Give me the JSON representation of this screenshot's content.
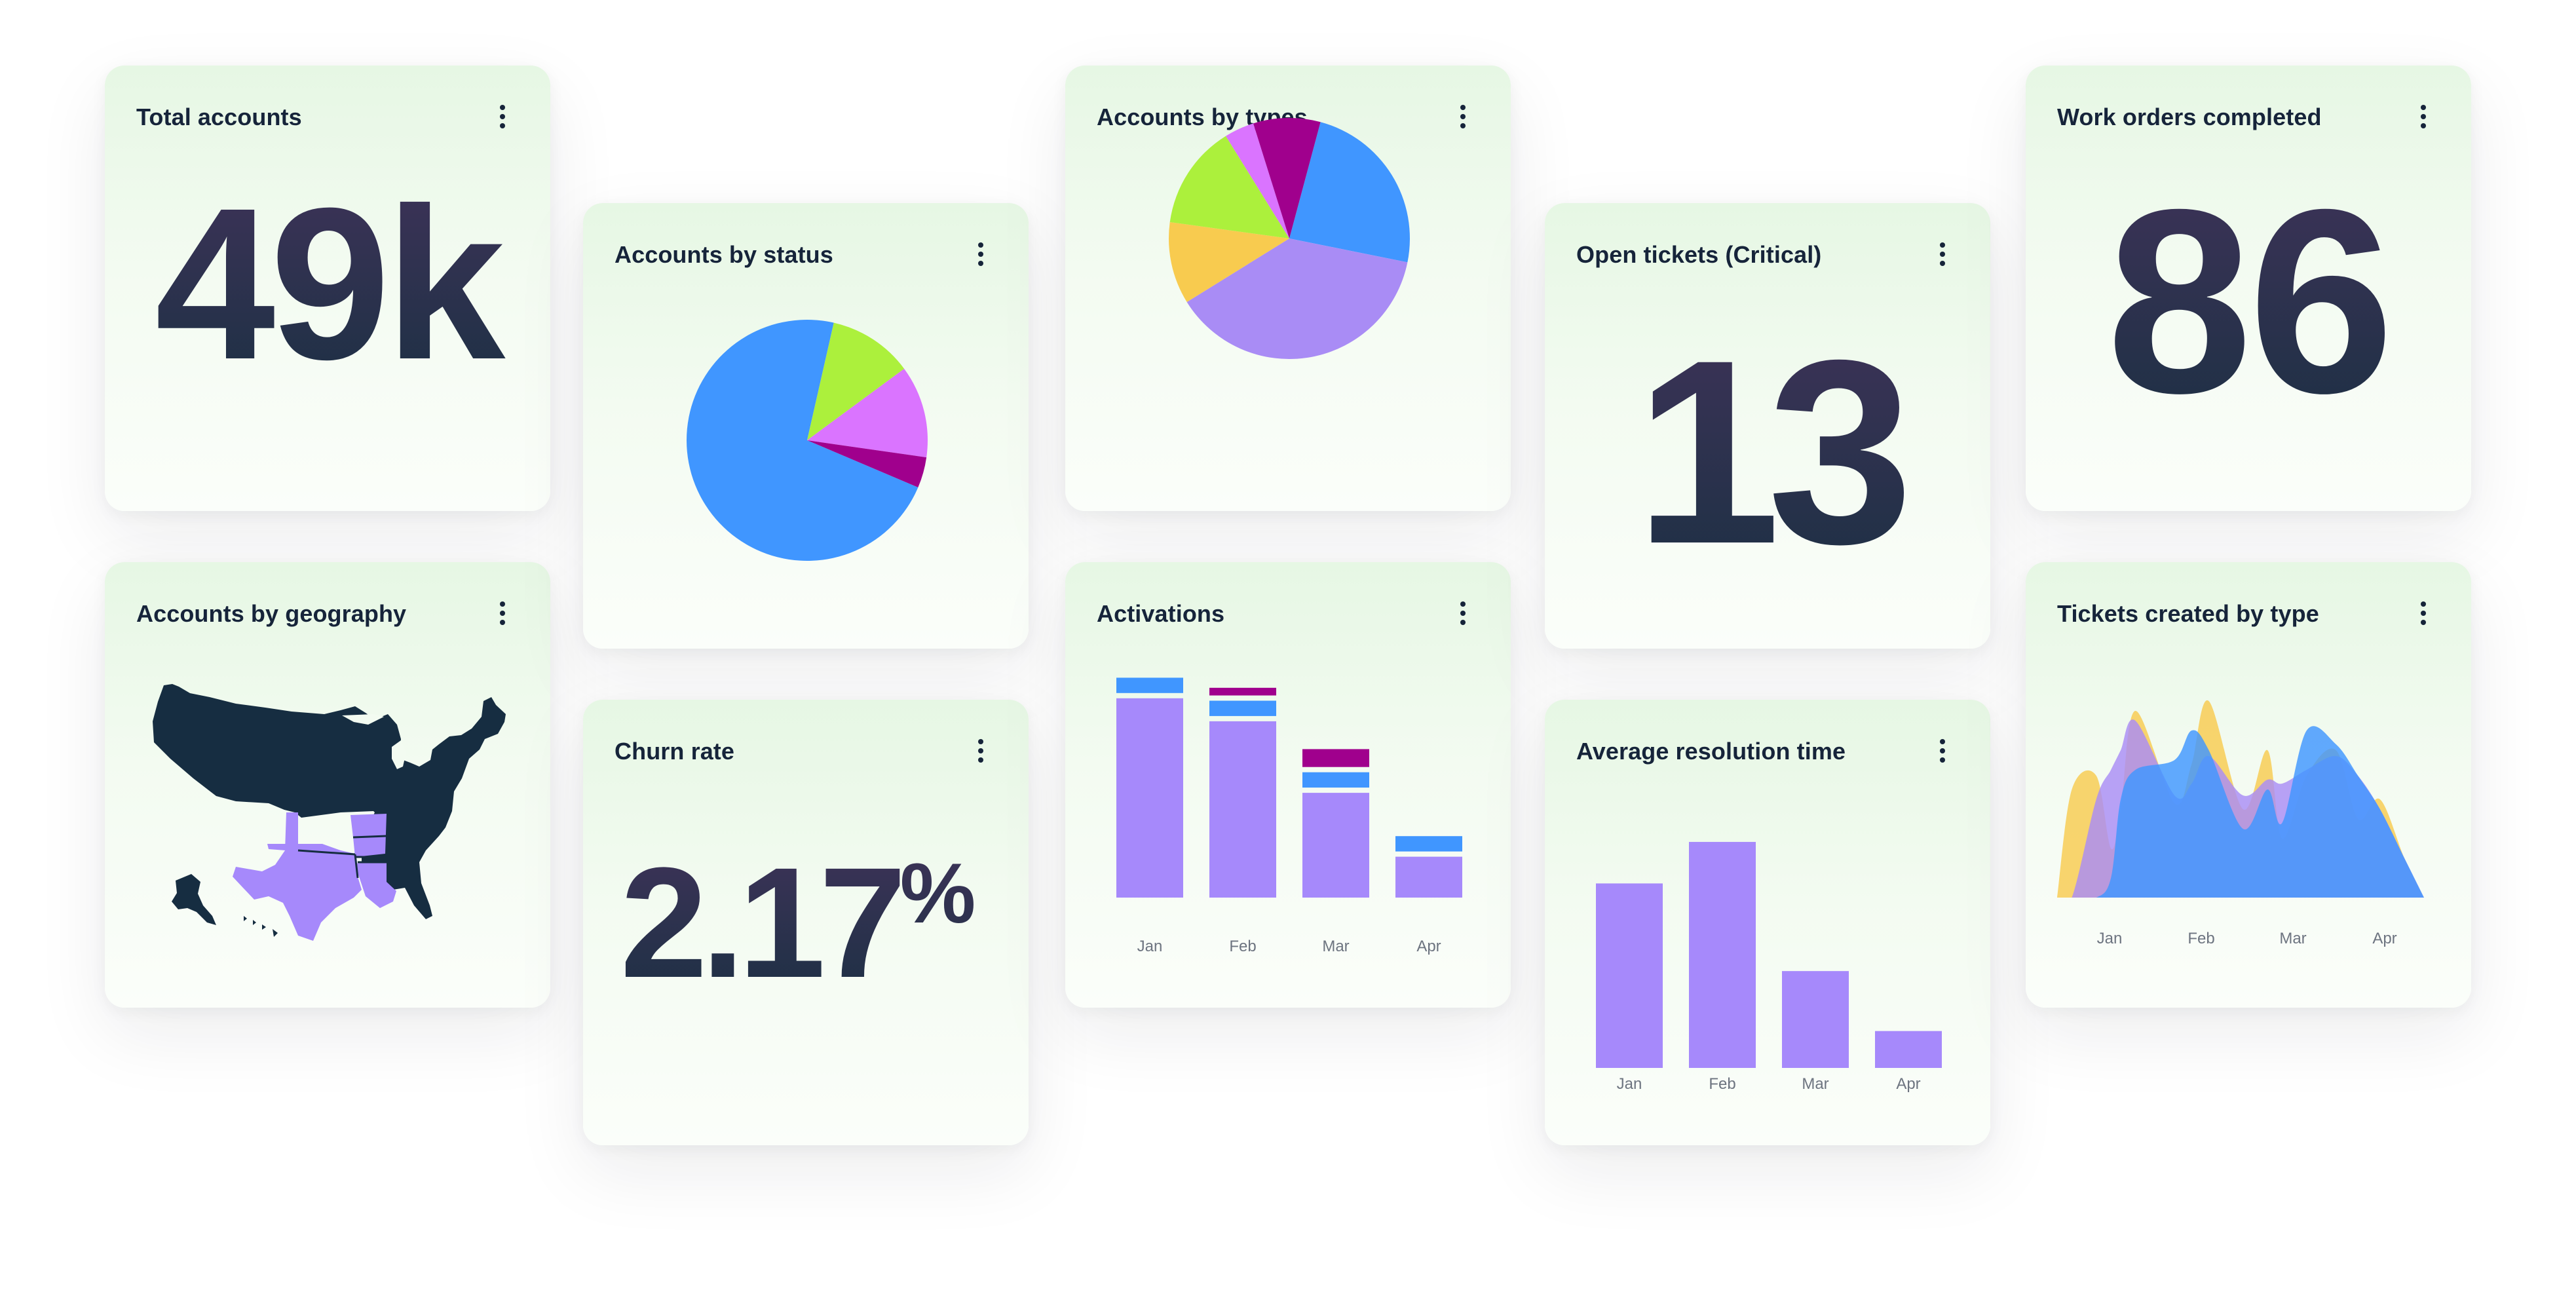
{
  "colors": {
    "purple": "#a689fb",
    "blue": "#4096ff",
    "magenta": "#a0008d",
    "lime": "#acf03c",
    "pink": "#da74ff",
    "yellow": "#f8cb4f",
    "lavender": "#a98cf5",
    "map_dark": "#162d41",
    "kpi_text": "#1d2b43"
  },
  "cards": {
    "total_accounts": {
      "title": "Total accounts",
      "value": "49k"
    },
    "accounts_by_geography": {
      "title": "Accounts by geography",
      "highlighted_states": [
        "Texas",
        "Oklahoma",
        "Arkansas",
        "Louisiana"
      ]
    },
    "accounts_by_status": {
      "title": "Accounts by status"
    },
    "churn_rate": {
      "title": "Churn rate",
      "value": "2.17",
      "unit": "%"
    },
    "accounts_by_types": {
      "title": "Accounts by types"
    },
    "activations": {
      "title": "Activations"
    },
    "open_tickets": {
      "title": "Open tickets (Critical)",
      "value": "13"
    },
    "average_resolution_time": {
      "title": "Average resolution time"
    },
    "work_orders": {
      "title": "Work orders completed",
      "value": "86"
    },
    "tickets_created_by_type": {
      "title": "Tickets created by type"
    }
  },
  "chart_data": [
    {
      "id": "accounts_by_status",
      "type": "pie",
      "slices": [
        {
          "color": "#4096ff",
          "value": 70
        },
        {
          "color": "#acf03c",
          "value": 11
        },
        {
          "color": "#da74ff",
          "value": 12
        },
        {
          "color": "#a0008d",
          "value": 4
        }
      ]
    },
    {
      "id": "accounts_by_types",
      "type": "pie",
      "slices": [
        {
          "color": "#4096ff",
          "value": 24
        },
        {
          "color": "#a98cf5",
          "value": 38
        },
        {
          "color": "#f8cb4f",
          "value": 11
        },
        {
          "color": "#acf03c",
          "value": 14
        },
        {
          "color": "#da74ff",
          "value": 4
        },
        {
          "color": "#a0008d",
          "value": 9
        }
      ]
    },
    {
      "id": "activations",
      "type": "bar",
      "stacked": true,
      "categories": [
        "Jan",
        "Feb",
        "Mar",
        "Apr"
      ],
      "series": [
        {
          "color": "#a689fb",
          "values": [
            78,
            69,
            41,
            16
          ]
        },
        {
          "color": "#4096ff",
          "values": [
            6,
            6,
            6,
            6
          ]
        },
        {
          "color": "#a0008d",
          "values": [
            0,
            3,
            7,
            0
          ]
        }
      ],
      "ylim": [
        0,
        100
      ]
    },
    {
      "id": "average_resolution_time",
      "type": "bar",
      "categories": [
        "Jan",
        "Feb",
        "Mar",
        "Apr"
      ],
      "values": [
        80,
        98,
        42,
        16
      ],
      "color": "#a689fb",
      "ylim": [
        0,
        100
      ]
    },
    {
      "id": "tickets_created_by_type",
      "type": "area",
      "categories": [
        "Jan",
        "Feb",
        "Mar",
        "Apr"
      ],
      "x": [
        0,
        0.6,
        1.6,
        2.2,
        2.6,
        3.2,
        4.8,
        5.5,
        6.2,
        7.6,
        8.6,
        9.2,
        10.2,
        11.4,
        12.3,
        13.2,
        14.2,
        15
      ],
      "series": [
        {
          "color": "#f8cb4f",
          "values": [
            0,
            55,
            62,
            25,
            45,
            95,
            48,
            68,
            100,
            45,
            75,
            30,
            62,
            75,
            40,
            50,
            20,
            0
          ]
        },
        {
          "color": "#a98cf5",
          "values": [
            0,
            0,
            50,
            65,
            75,
            90,
            52,
            58,
            72,
            52,
            60,
            58,
            65,
            72,
            62,
            45,
            20,
            0
          ]
        },
        {
          "color": "#4096ff",
          "values": [
            0,
            0,
            0,
            10,
            50,
            65,
            70,
            85,
            75,
            35,
            55,
            38,
            85,
            78,
            62,
            45,
            20,
            0
          ]
        }
      ],
      "ylim": [
        0,
        100
      ]
    }
  ]
}
